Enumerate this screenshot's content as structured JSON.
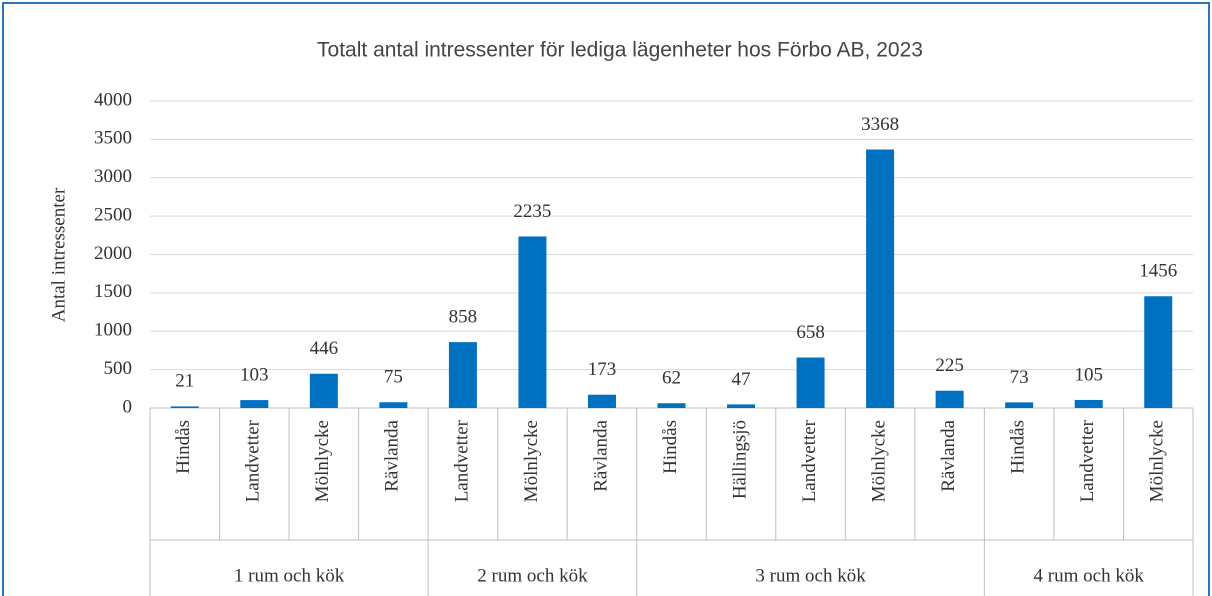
{
  "chart_data": {
    "type": "bar",
    "title": "Totalt antal intressenter för lediga lägenheter hos Förbo AB, 2023",
    "y_label": "Antal intressenter",
    "color": "#0070c0",
    "ylim": [
      0,
      4000
    ],
    "yticks": [
      0,
      500,
      1000,
      1500,
      2000,
      2500,
      3000,
      3500,
      4000
    ],
    "grid": true,
    "groups": [
      {
        "name": "1 rum och kök",
        "categories": [
          "Hindås",
          "Landvetter",
          "Mölnlycke",
          "Rävlanda"
        ],
        "values": [
          21,
          103,
          446,
          75
        ]
      },
      {
        "name": "2 rum och kök",
        "categories": [
          "Landvetter",
          "Mölnlycke",
          "Rävlanda"
        ],
        "values": [
          858,
          2235,
          173
        ]
      },
      {
        "name": "3 rum och kök",
        "categories": [
          "Hindås",
          "Hällingsjö",
          "Landvetter",
          "Mölnlycke",
          "Rävlanda"
        ],
        "values": [
          62,
          47,
          658,
          3368,
          225
        ]
      },
      {
        "name": "4 rum och kök",
        "categories": [
          "Hindås",
          "Landvetter",
          "Mölnlycke"
        ],
        "values": [
          73,
          105,
          1456
        ]
      }
    ]
  }
}
